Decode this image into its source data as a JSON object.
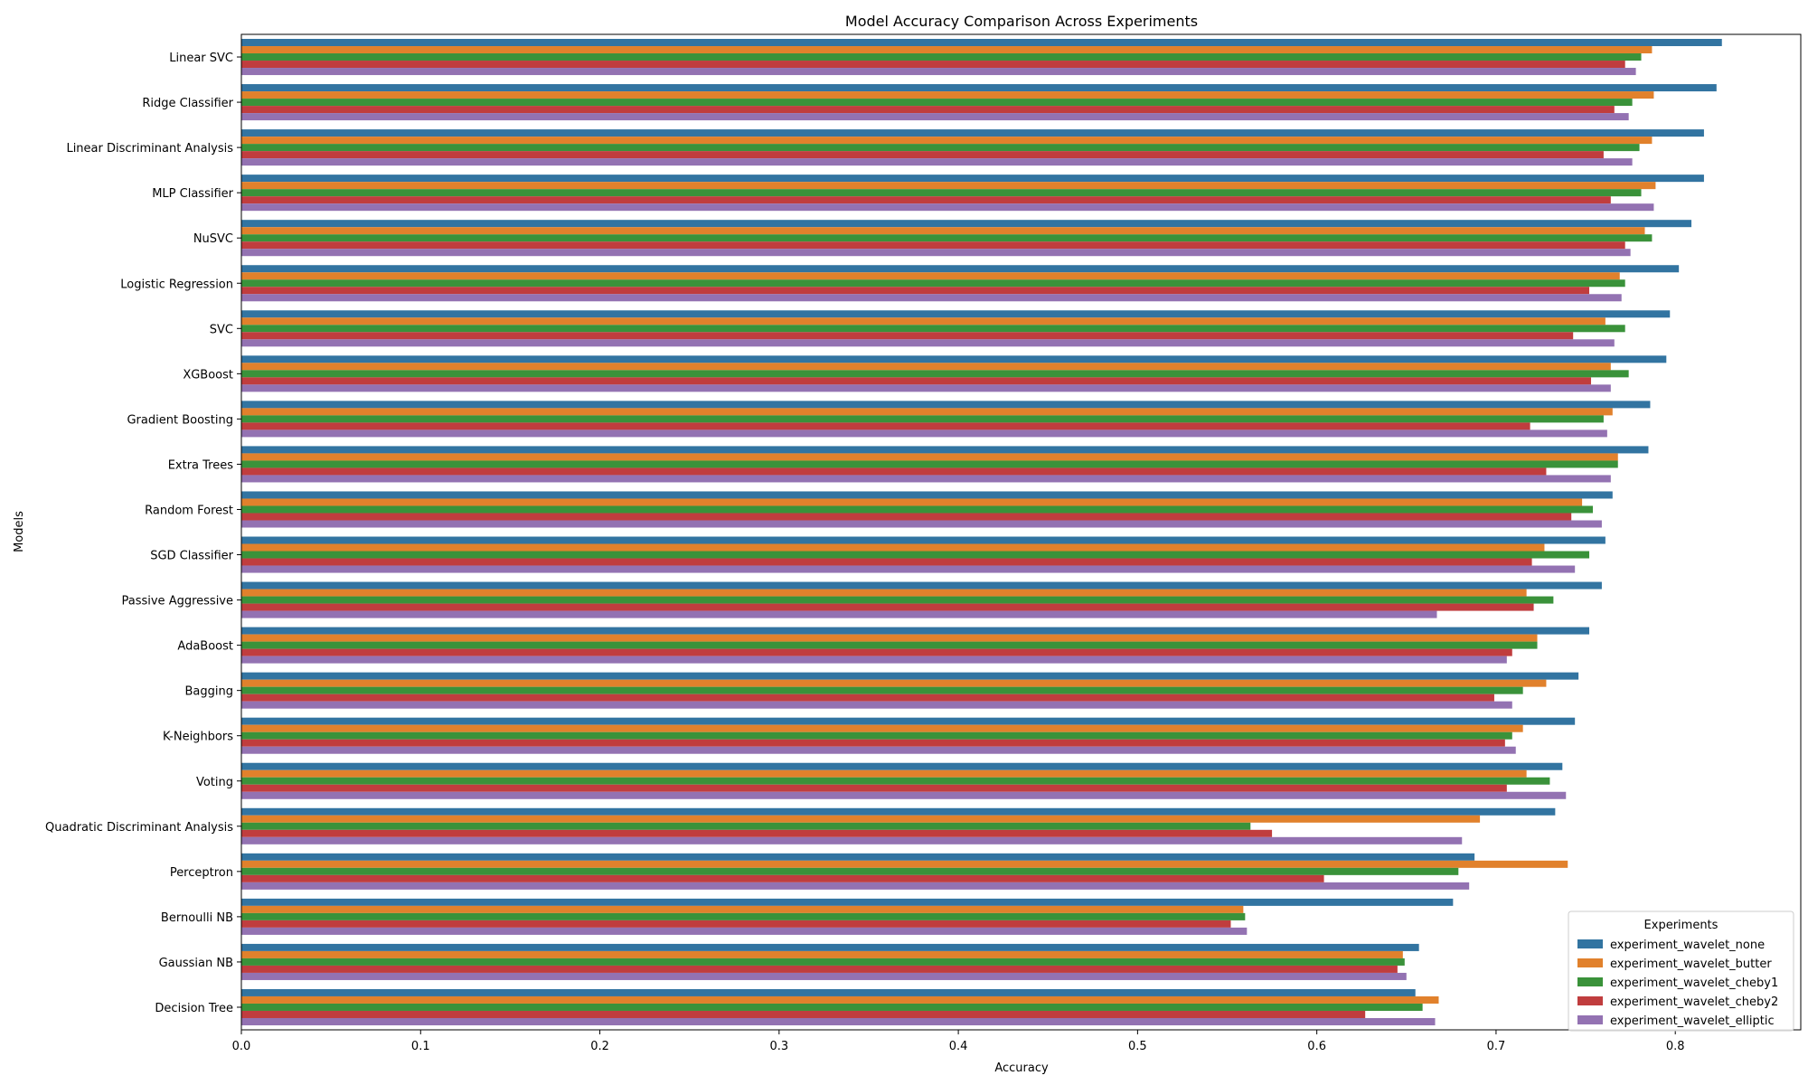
{
  "chart_data": {
    "type": "bar",
    "orientation": "horizontal",
    "title": "Model Accuracy Comparison Across Experiments",
    "xlabel": "Accuracy",
    "ylabel": "Models",
    "xlim": [
      0,
      0.87
    ],
    "xticks": [
      0.0,
      0.1,
      0.2,
      0.3,
      0.4,
      0.5,
      0.6,
      0.7,
      0.8
    ],
    "xtick_labels": [
      "0.0",
      "0.1",
      "0.2",
      "0.3",
      "0.4",
      "0.5",
      "0.6",
      "0.7",
      "0.8"
    ],
    "grid": false,
    "legend": {
      "title": "Experiments",
      "placement": "lower-right"
    },
    "categories": [
      "Linear SVC",
      "Ridge Classifier",
      "Linear Discriminant Analysis",
      "MLP Classifier",
      "NuSVC",
      "Logistic Regression",
      "SVC",
      "XGBoost",
      "Gradient Boosting",
      "Extra Trees",
      "Random Forest",
      "SGD Classifier",
      "Passive Aggressive",
      "AdaBoost",
      "Bagging",
      "K-Neighbors",
      "Voting",
      "Quadratic Discriminant Analysis",
      "Perceptron",
      "Bernoulli NB",
      "Gaussian NB",
      "Decision Tree"
    ],
    "series": [
      {
        "name": "experiment_wavelet_none",
        "color": "#3274a1",
        "values": [
          0.826,
          0.823,
          0.816,
          0.816,
          0.809,
          0.802,
          0.797,
          0.795,
          0.786,
          0.785,
          0.765,
          0.761,
          0.759,
          0.752,
          0.746,
          0.744,
          0.737,
          0.733,
          0.688,
          0.676,
          0.657,
          0.655
        ]
      },
      {
        "name": "experiment_wavelet_butter",
        "color": "#e1812c",
        "values": [
          0.787,
          0.788,
          0.787,
          0.789,
          0.783,
          0.769,
          0.761,
          0.764,
          0.765,
          0.768,
          0.748,
          0.727,
          0.717,
          0.723,
          0.728,
          0.715,
          0.717,
          0.691,
          0.74,
          0.559,
          0.648,
          0.668
        ]
      },
      {
        "name": "experiment_wavelet_cheby1",
        "color": "#3a923a",
        "values": [
          0.781,
          0.776,
          0.78,
          0.781,
          0.787,
          0.772,
          0.772,
          0.774,
          0.76,
          0.768,
          0.754,
          0.752,
          0.732,
          0.723,
          0.715,
          0.709,
          0.73,
          0.563,
          0.679,
          0.56,
          0.649,
          0.659
        ]
      },
      {
        "name": "experiment_wavelet_cheby2",
        "color": "#c03d3e",
        "values": [
          0.772,
          0.766,
          0.76,
          0.764,
          0.772,
          0.752,
          0.743,
          0.753,
          0.719,
          0.728,
          0.742,
          0.72,
          0.721,
          0.709,
          0.699,
          0.705,
          0.706,
          0.575,
          0.604,
          0.552,
          0.645,
          0.627
        ]
      },
      {
        "name": "experiment_wavelet_elliptic",
        "color": "#9372b2",
        "values": [
          0.778,
          0.774,
          0.776,
          0.788,
          0.775,
          0.77,
          0.766,
          0.764,
          0.762,
          0.764,
          0.759,
          0.744,
          0.667,
          0.706,
          0.709,
          0.711,
          0.739,
          0.681,
          0.685,
          0.561,
          0.65,
          0.666
        ]
      }
    ]
  }
}
